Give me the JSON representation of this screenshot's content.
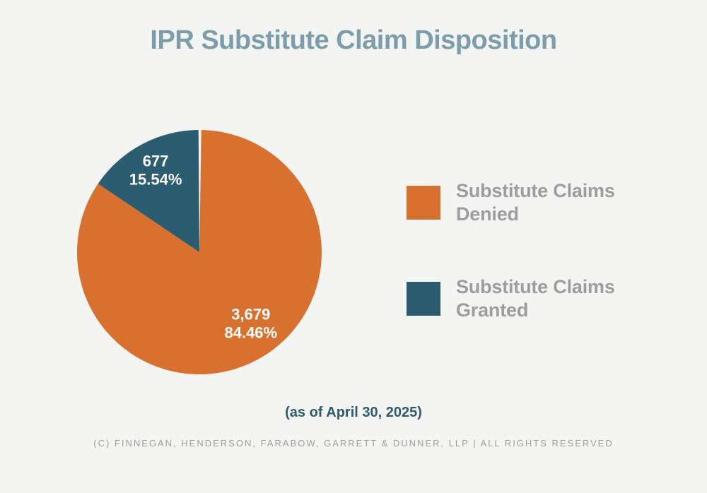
{
  "title": "IPR Substitute Claim Disposition",
  "note": "(as of April 30, 2025)",
  "footer": "(C) FINNEGAN, HENDERSON, FARABOW, GARRETT & DUNNER, LLP | ALL RIGHTS RESERVED",
  "colors": {
    "background": "#F4F4F2",
    "title": "#7C9DAB",
    "legend_text": "#9D9D9D",
    "note": "#2C5C70",
    "footer_text": "#9E9E9E",
    "label_text": "#FFFFFF",
    "denied": "#D8702F",
    "granted": "#2C5C70"
  },
  "chart_data": {
    "type": "pie",
    "title": "IPR Substitute Claim Disposition",
    "start_angle_deg": 0,
    "direction": "clockwise",
    "legend_position": "right",
    "slices": [
      {
        "id": "denied",
        "label": "Substitute Claims Denied",
        "value": 3679,
        "value_display": "3,679",
        "percent": 84.46,
        "percent_display": "84.46%",
        "color": "#D8702F"
      },
      {
        "id": "granted",
        "label": "Substitute Claims Granted",
        "value": 677,
        "value_display": "677",
        "percent": 15.54,
        "percent_display": "15.54%",
        "color": "#2C5C70"
      }
    ]
  },
  "legend": {
    "items": [
      {
        "line1": "Substitute Claims",
        "line2": "Denied"
      },
      {
        "line1": "Substitute Claims",
        "line2": "Granted"
      }
    ]
  }
}
